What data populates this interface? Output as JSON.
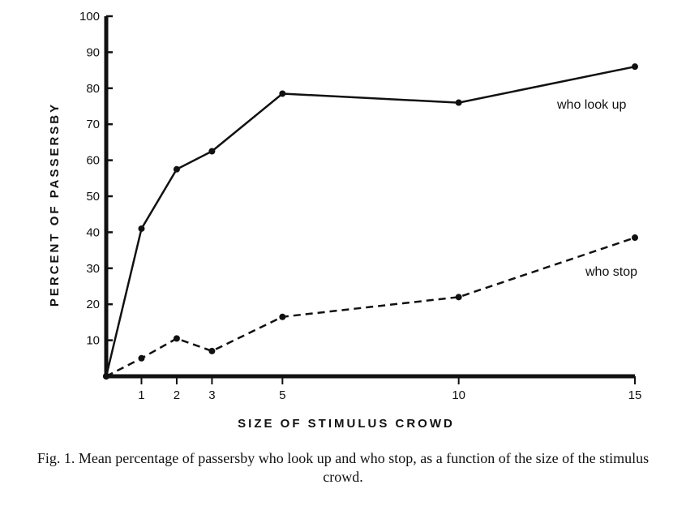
{
  "chart_data": {
    "type": "line",
    "xlabel": "SIZE OF STIMULUS CROWD",
    "ylabel": "PERCENT OF PASSERSBY",
    "xlim": [
      0,
      15
    ],
    "ylim": [
      0,
      100
    ],
    "x_ticks": [
      1,
      2,
      3,
      5,
      10,
      15
    ],
    "y_ticks": [
      10,
      20,
      30,
      40,
      50,
      60,
      70,
      80,
      90,
      100
    ],
    "grid": false,
    "series": [
      {
        "name": "who look up",
        "style": "solid",
        "color": "#111111",
        "x": [
          0,
          1,
          2,
          3,
          5,
          10,
          15
        ],
        "y": [
          0,
          41,
          57.5,
          62.5,
          78.5,
          76,
          86
        ]
      },
      {
        "name": "who stop",
        "style": "dashed",
        "color": "#111111",
        "x": [
          0,
          1,
          2,
          3,
          5,
          10,
          15
        ],
        "y": [
          0,
          5,
          10.5,
          7,
          16.5,
          22,
          38.5
        ]
      }
    ]
  },
  "caption": "Fig. 1. Mean percentage of passersby who look up and who stop, as a function of the size of the stimulus crowd."
}
